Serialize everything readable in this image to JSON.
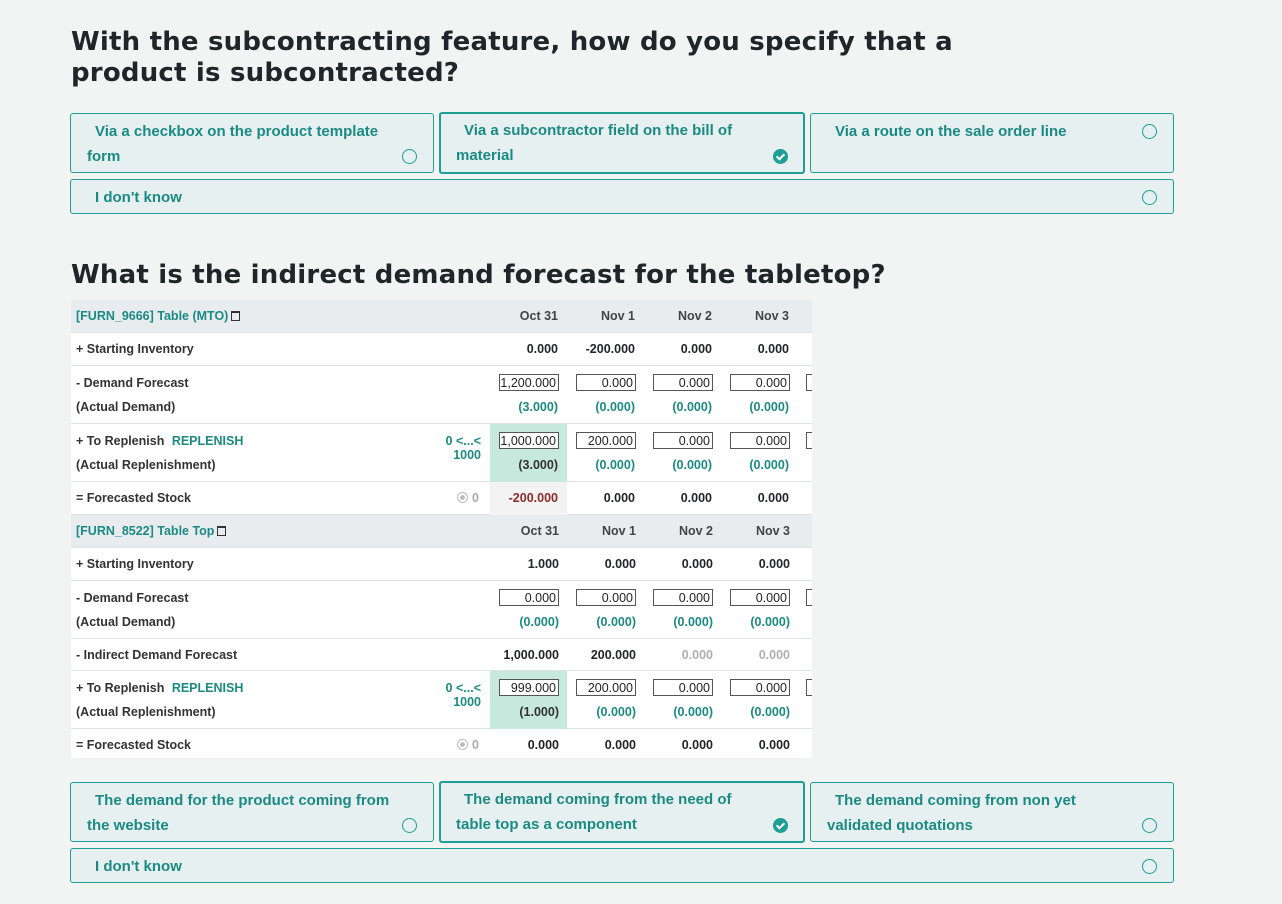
{
  "question1": {
    "title": "With the subcontracting feature, how do you specify that a product is subcontracted?",
    "answers": [
      {
        "label": "Via a checkbox on the product template form",
        "selected": false
      },
      {
        "label": "Via a subcontractor field on the bill of material",
        "selected": true
      },
      {
        "label": "Via a route on the sale order line",
        "selected": false
      },
      {
        "label": "I don't know",
        "selected": false
      }
    ]
  },
  "question2": {
    "title": "What is the indirect demand forecast for the tabletop?",
    "answers": [
      {
        "label": "The demand for the product coming from the website",
        "selected": false
      },
      {
        "label": "The demand coming from the need of table top as a component",
        "selected": true
      },
      {
        "label": "The demand coming from non yet validated quotations",
        "selected": false
      },
      {
        "label": "I don't know",
        "selected": false
      }
    ]
  },
  "mps": {
    "dates": [
      "Oct 31",
      "Nov 1",
      "Nov 2",
      "Nov 3"
    ],
    "products": [
      {
        "name": "[FURN_9666] Table (MTO)",
        "starting_label": "+ Starting Inventory",
        "starting": [
          "0.000",
          "-200.000",
          "0.000",
          "0.000"
        ],
        "demand_label": "- Demand Forecast",
        "demand_sub": "(Actual Demand)",
        "demand": [
          "1,200.000",
          "0.000",
          "0.000",
          "0.000"
        ],
        "actual_demand": [
          "(3.000)",
          "(0.000)",
          "(0.000)",
          "(0.000)"
        ],
        "replenish_label": "+ To Replenish",
        "replenish_btn": "REPLENISH",
        "replenish_sub": "(Actual Replenishment)",
        "range": "0 <...< 1000",
        "replenish": [
          "1,000.000",
          "200.000",
          "0.000",
          "0.000"
        ],
        "actual_replenish": [
          "(3.000)",
          "(0.000)",
          "(0.000)",
          "(0.000)"
        ],
        "forecast_label": "= Forecasted Stock",
        "safety": "0",
        "forecast": [
          "-200.000",
          "0.000",
          "0.000",
          "0.000"
        ]
      },
      {
        "name": "[FURN_8522] Table Top",
        "starting_label": "+ Starting Inventory",
        "starting": [
          "1.000",
          "0.000",
          "0.000",
          "0.000"
        ],
        "demand_label": "- Demand Forecast",
        "demand_sub": "(Actual Demand)",
        "demand": [
          "0.000",
          "0.000",
          "0.000",
          "0.000"
        ],
        "actual_demand": [
          "(0.000)",
          "(0.000)",
          "(0.000)",
          "(0.000)"
        ],
        "indirect_label": "- Indirect Demand Forecast",
        "indirect": [
          "1,000.000",
          "200.000",
          "0.000",
          "0.000"
        ],
        "replenish_label": "+ To Replenish",
        "replenish_btn": "REPLENISH",
        "replenish_sub": "(Actual Replenishment)",
        "range": "0 <...< 1000",
        "replenish": [
          "999.000",
          "200.000",
          "0.000",
          "0.000"
        ],
        "actual_replenish": [
          "(1.000)",
          "(0.000)",
          "(0.000)",
          "(0.000)"
        ],
        "forecast_label": "= Forecasted Stock",
        "safety": "0",
        "forecast": [
          "0.000",
          "0.000",
          "0.000",
          "0.000"
        ]
      }
    ]
  }
}
